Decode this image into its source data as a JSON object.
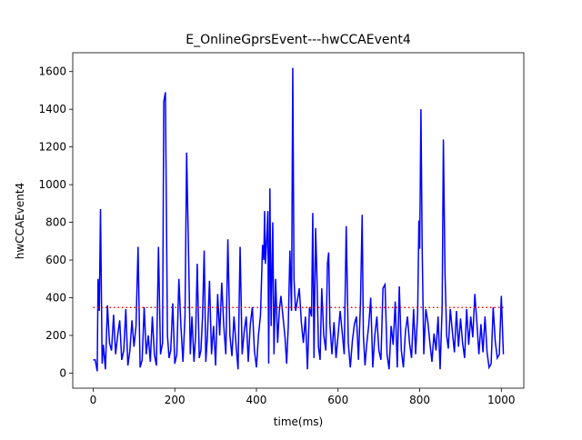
{
  "chart_data": {
    "type": "line",
    "title": "E_OnlineGprsEvent---hwCCAEvent4",
    "xlabel": "time(ms)",
    "ylabel": "hwCCAEvent4",
    "xlim": [
      -50,
      1055
    ],
    "ylim": [
      -80,
      1700
    ],
    "xticks": [
      0,
      200,
      400,
      600,
      800,
      1000
    ],
    "yticks": [
      0,
      200,
      400,
      600,
      800,
      1000,
      1200,
      1400,
      1600
    ],
    "series": [
      {
        "color": "#0000ff",
        "linestyle": "solid",
        "x": [
          0,
          5,
          10,
          12,
          15,
          18,
          22,
          25,
          30,
          35,
          40,
          45,
          50,
          55,
          60,
          65,
          70,
          75,
          80,
          85,
          90,
          95,
          100,
          105,
          110,
          115,
          120,
          125,
          130,
          135,
          140,
          145,
          150,
          155,
          160,
          165,
          170,
          173,
          177,
          182,
          186,
          190,
          195,
          200,
          205,
          210,
          215,
          220,
          225,
          229,
          234,
          238,
          242,
          247,
          251,
          255,
          260,
          264,
          268,
          272,
          276,
          280,
          285,
          290,
          295,
          300,
          305,
          310,
          315,
          320,
          325,
          330,
          335,
          340,
          345,
          350,
          355,
          360,
          365,
          370,
          375,
          380,
          385,
          390,
          395,
          400,
          405,
          410,
          415,
          418,
          420,
          422,
          425,
          428,
          430,
          433,
          436,
          440,
          443,
          447,
          452,
          456,
          460,
          465,
          470,
          474,
          478,
          482,
          486,
          489,
          492,
          496,
          500,
          505,
          510,
          515,
          520,
          525,
          530,
          535,
          538,
          541,
          545,
          548,
          552,
          556,
          560,
          565,
          570,
          574,
          577,
          580,
          585,
          590,
          595,
          600,
          605,
          610,
          615,
          620,
          625,
          630,
          635,
          640,
          645,
          650,
          655,
          659,
          662,
          666,
          670,
          675,
          680,
          685,
          690,
          695,
          700,
          705,
          710,
          715,
          720,
          725,
          730,
          735,
          740,
          745,
          750,
          755,
          760,
          765,
          770,
          775,
          780,
          785,
          790,
          795,
          798,
          800,
          803,
          806,
          810,
          815,
          820,
          825,
          830,
          835,
          840,
          845,
          850,
          855,
          858,
          862,
          866,
          870,
          875,
          880,
          885,
          890,
          895,
          900,
          905,
          910,
          915,
          920,
          925,
          930,
          935,
          940,
          945,
          950,
          955,
          960,
          965,
          970,
          975,
          980,
          985,
          990,
          995,
          1000,
          1005
        ],
        "values": [
          70,
          70,
          10,
          500,
          330,
          870,
          50,
          150,
          20,
          360,
          160,
          120,
          310,
          100,
          200,
          280,
          70,
          120,
          340,
          40,
          120,
          280,
          140,
          250,
          670,
          30,
          70,
          350,
          100,
          200,
          60,
          300,
          100,
          40,
          670,
          100,
          160,
          1440,
          1490,
          200,
          80,
          120,
          370,
          50,
          100,
          500,
          250,
          60,
          300,
          1170,
          600,
          100,
          300,
          60,
          200,
          580,
          80,
          120,
          300,
          650,
          60,
          200,
          490,
          100,
          250,
          40,
          420,
          200,
          480,
          250,
          100,
          710,
          200,
          90,
          300,
          150,
          20,
          670,
          100,
          220,
          300,
          60,
          260,
          350,
          120,
          30,
          200,
          310,
          680,
          600,
          860,
          580,
          700,
          860,
          50,
          980,
          250,
          800,
          100,
          500,
          160,
          330,
          410,
          300,
          190,
          50,
          250,
          650,
          330,
          1620,
          500,
          330,
          380,
          450,
          270,
          160,
          300,
          20,
          350,
          300,
          850,
          80,
          770,
          530,
          140,
          70,
          450,
          200,
          120,
          580,
          640,
          260,
          100,
          270,
          80,
          200,
          330,
          220,
          100,
          780,
          160,
          30,
          170,
          260,
          300,
          70,
          380,
          840,
          200,
          40,
          150,
          250,
          400,
          30,
          200,
          300,
          120,
          70,
          450,
          470,
          100,
          20,
          250,
          150,
          380,
          30,
          460,
          120,
          30,
          220,
          300,
          160,
          80,
          340,
          100,
          320,
          810,
          660,
          1400,
          670,
          100,
          340,
          270,
          160,
          60,
          210,
          120,
          300,
          20,
          350,
          1240,
          530,
          200,
          130,
          340,
          220,
          110,
          330,
          140,
          290,
          160,
          80,
          340,
          150,
          300,
          190,
          420,
          270,
          100,
          260,
          110,
          300,
          110,
          30,
          50,
          350,
          170,
          80,
          100,
          410,
          100
        ]
      },
      {
        "color": "#ff0000",
        "linestyle": "dotted",
        "x": [
          0,
          1005
        ],
        "values": [
          348,
          348
        ]
      }
    ]
  }
}
